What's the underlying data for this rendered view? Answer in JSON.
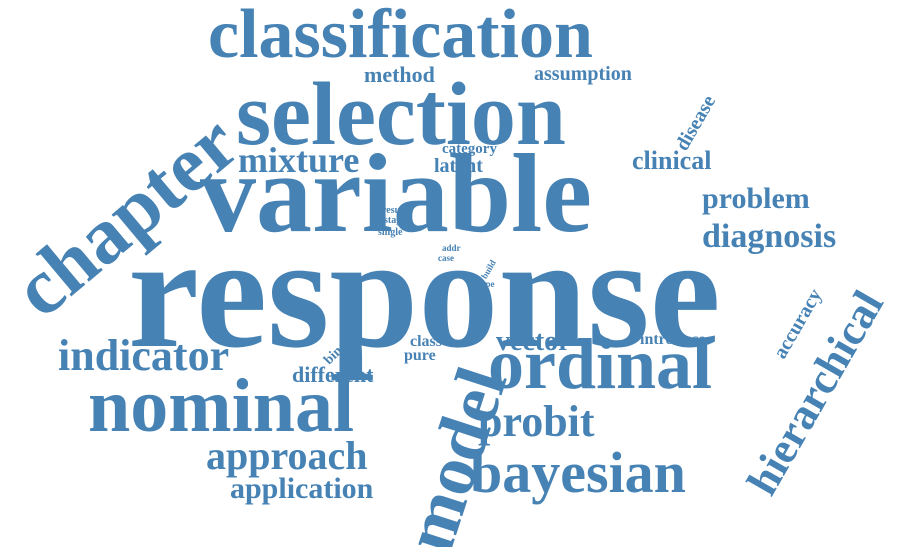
{
  "color": "#4682b4",
  "words": {
    "response": "response",
    "variable": "variable",
    "selection": "selection",
    "classification": "classification",
    "chapter": "chapter",
    "nominal": "nominal",
    "ordinal": "ordinal",
    "model": "model",
    "bayesian": "bayesian",
    "hierarchical": "hierarchical",
    "indicator": "indicator",
    "approach": "approach",
    "probit": "probit",
    "mixture": "mixture",
    "application": "application",
    "diagnosis": "diagnosis",
    "problem": "problem",
    "clinical": "clinical",
    "method": "method",
    "assumption": "assumption",
    "disease": "disease",
    "vector": "vector",
    "different": "different",
    "accuracy": "accuracy",
    "latent": "latent",
    "category": "category",
    "introduce": "introduce",
    "class": "class",
    "pure": "pure",
    "binary": "binary",
    "result": "result",
    "stage": "stage",
    "single": "single",
    "addr": "addr",
    "case": "case",
    "build": "build",
    "type": "type"
  }
}
